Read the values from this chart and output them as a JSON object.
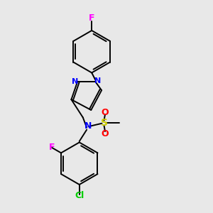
{
  "background_color": "#e8e8e8",
  "bond_color": "#000000",
  "atom_colors": {
    "F_top": "#ff00ff",
    "N": "#0000ff",
    "O": "#ff0000",
    "S": "#cccc00",
    "F_bottom": "#ff00ff",
    "Cl": "#00cc00"
  },
  "figsize": [
    3.0,
    3.0
  ],
  "dpi": 100
}
